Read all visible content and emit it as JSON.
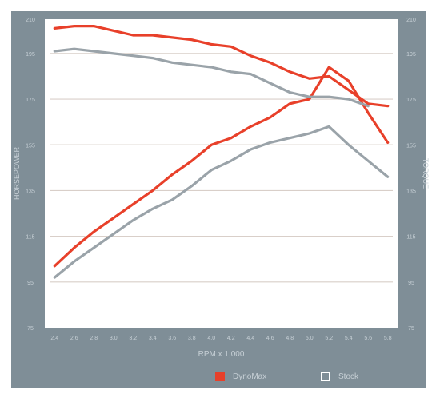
{
  "chart_data": {
    "type": "line",
    "x": [
      2.4,
      2.6,
      2.8,
      3.0,
      3.2,
      3.4,
      3.6,
      3.8,
      4.0,
      4.2,
      4.4,
      4.6,
      4.8,
      5.0,
      5.2,
      5.4,
      5.6,
      5.8
    ],
    "xlabel": "RPM x 1,000",
    "xlim": [
      2.3,
      5.9
    ],
    "x_ticks": [
      "2.4",
      "2.6",
      "2.8",
      "3.0",
      "3.2",
      "3.4",
      "3.6",
      "3.8",
      "4.0",
      "4.2",
      "4.4",
      "4.6",
      "4.8",
      "5.0",
      "5.2",
      "5.4",
      "5.6",
      "5.8"
    ],
    "ylabel_left": "HORSEPOWER",
    "ylabel_right": "TORQUE",
    "ylim": [
      75,
      210
    ],
    "y_ticks": [
      "75",
      "95",
      "115",
      "135",
      "155",
      "175",
      "195",
      "210"
    ],
    "grid": true,
    "legend_position": "bottom",
    "series": [
      {
        "name": "DynoMax",
        "color": "#e8402a",
        "axis": "left",
        "style": "hp",
        "x": [
          2.4,
          2.6,
          2.8,
          3.0,
          3.2,
          3.4,
          3.6,
          3.8,
          4.0,
          4.2,
          4.4,
          4.6,
          4.8,
          5.0,
          5.2,
          5.4,
          5.6,
          5.8
        ],
        "values": [
          102,
          110,
          117,
          123,
          129,
          135,
          142,
          148,
          155,
          158,
          163,
          167,
          173,
          175,
          189,
          183,
          169,
          156
        ]
      },
      {
        "name": "Stock",
        "color": "#9aa3a9",
        "axis": "left",
        "style": "hp",
        "x": [
          2.4,
          2.6,
          2.8,
          3.0,
          3.2,
          3.4,
          3.6,
          3.8,
          4.0,
          4.2,
          4.4,
          4.6,
          4.8,
          5.0,
          5.2,
          5.4,
          5.6,
          5.8
        ],
        "values": [
          97,
          104,
          110,
          116,
          122,
          127,
          131,
          137,
          144,
          148,
          153,
          156,
          158,
          160,
          163,
          155,
          148,
          141
        ]
      },
      {
        "name": "DynoMax",
        "color": "#e8402a",
        "axis": "right",
        "style": "torque",
        "x": [
          2.4,
          2.6,
          2.8,
          3.0,
          3.2,
          3.4,
          3.6,
          3.8,
          4.0,
          4.2,
          4.4,
          4.6,
          4.8,
          5.0,
          5.2,
          5.4,
          5.6,
          5.8
        ],
        "values": [
          206,
          207,
          207,
          205,
          203,
          203,
          202,
          201,
          199,
          198,
          194,
          191,
          187,
          184,
          185,
          179,
          173,
          172
        ]
      },
      {
        "name": "Stock",
        "color": "#9aa3a9",
        "axis": "right",
        "style": "torque",
        "x": [
          2.4,
          2.6,
          2.8,
          3.0,
          3.2,
          3.4,
          3.6,
          3.8,
          4.0,
          4.2,
          4.4,
          4.6,
          4.8,
          5.0,
          5.2,
          5.4,
          5.6
        ],
        "values": [
          196,
          197,
          196,
          195,
          194,
          193,
          191,
          190,
          189,
          187,
          186,
          182,
          178,
          176,
          176,
          175,
          172
        ]
      }
    ]
  },
  "legend": [
    {
      "label": "DynoMax",
      "color": "#e8402a",
      "filled": true
    },
    {
      "label": "Stock",
      "color": "#ffffff",
      "filled": false
    }
  ],
  "colors": {
    "panel": "#7f8e97",
    "plot_bg": "#ffffff",
    "grid": "#d9cfc9",
    "tick_text": "#c7d0d6"
  }
}
